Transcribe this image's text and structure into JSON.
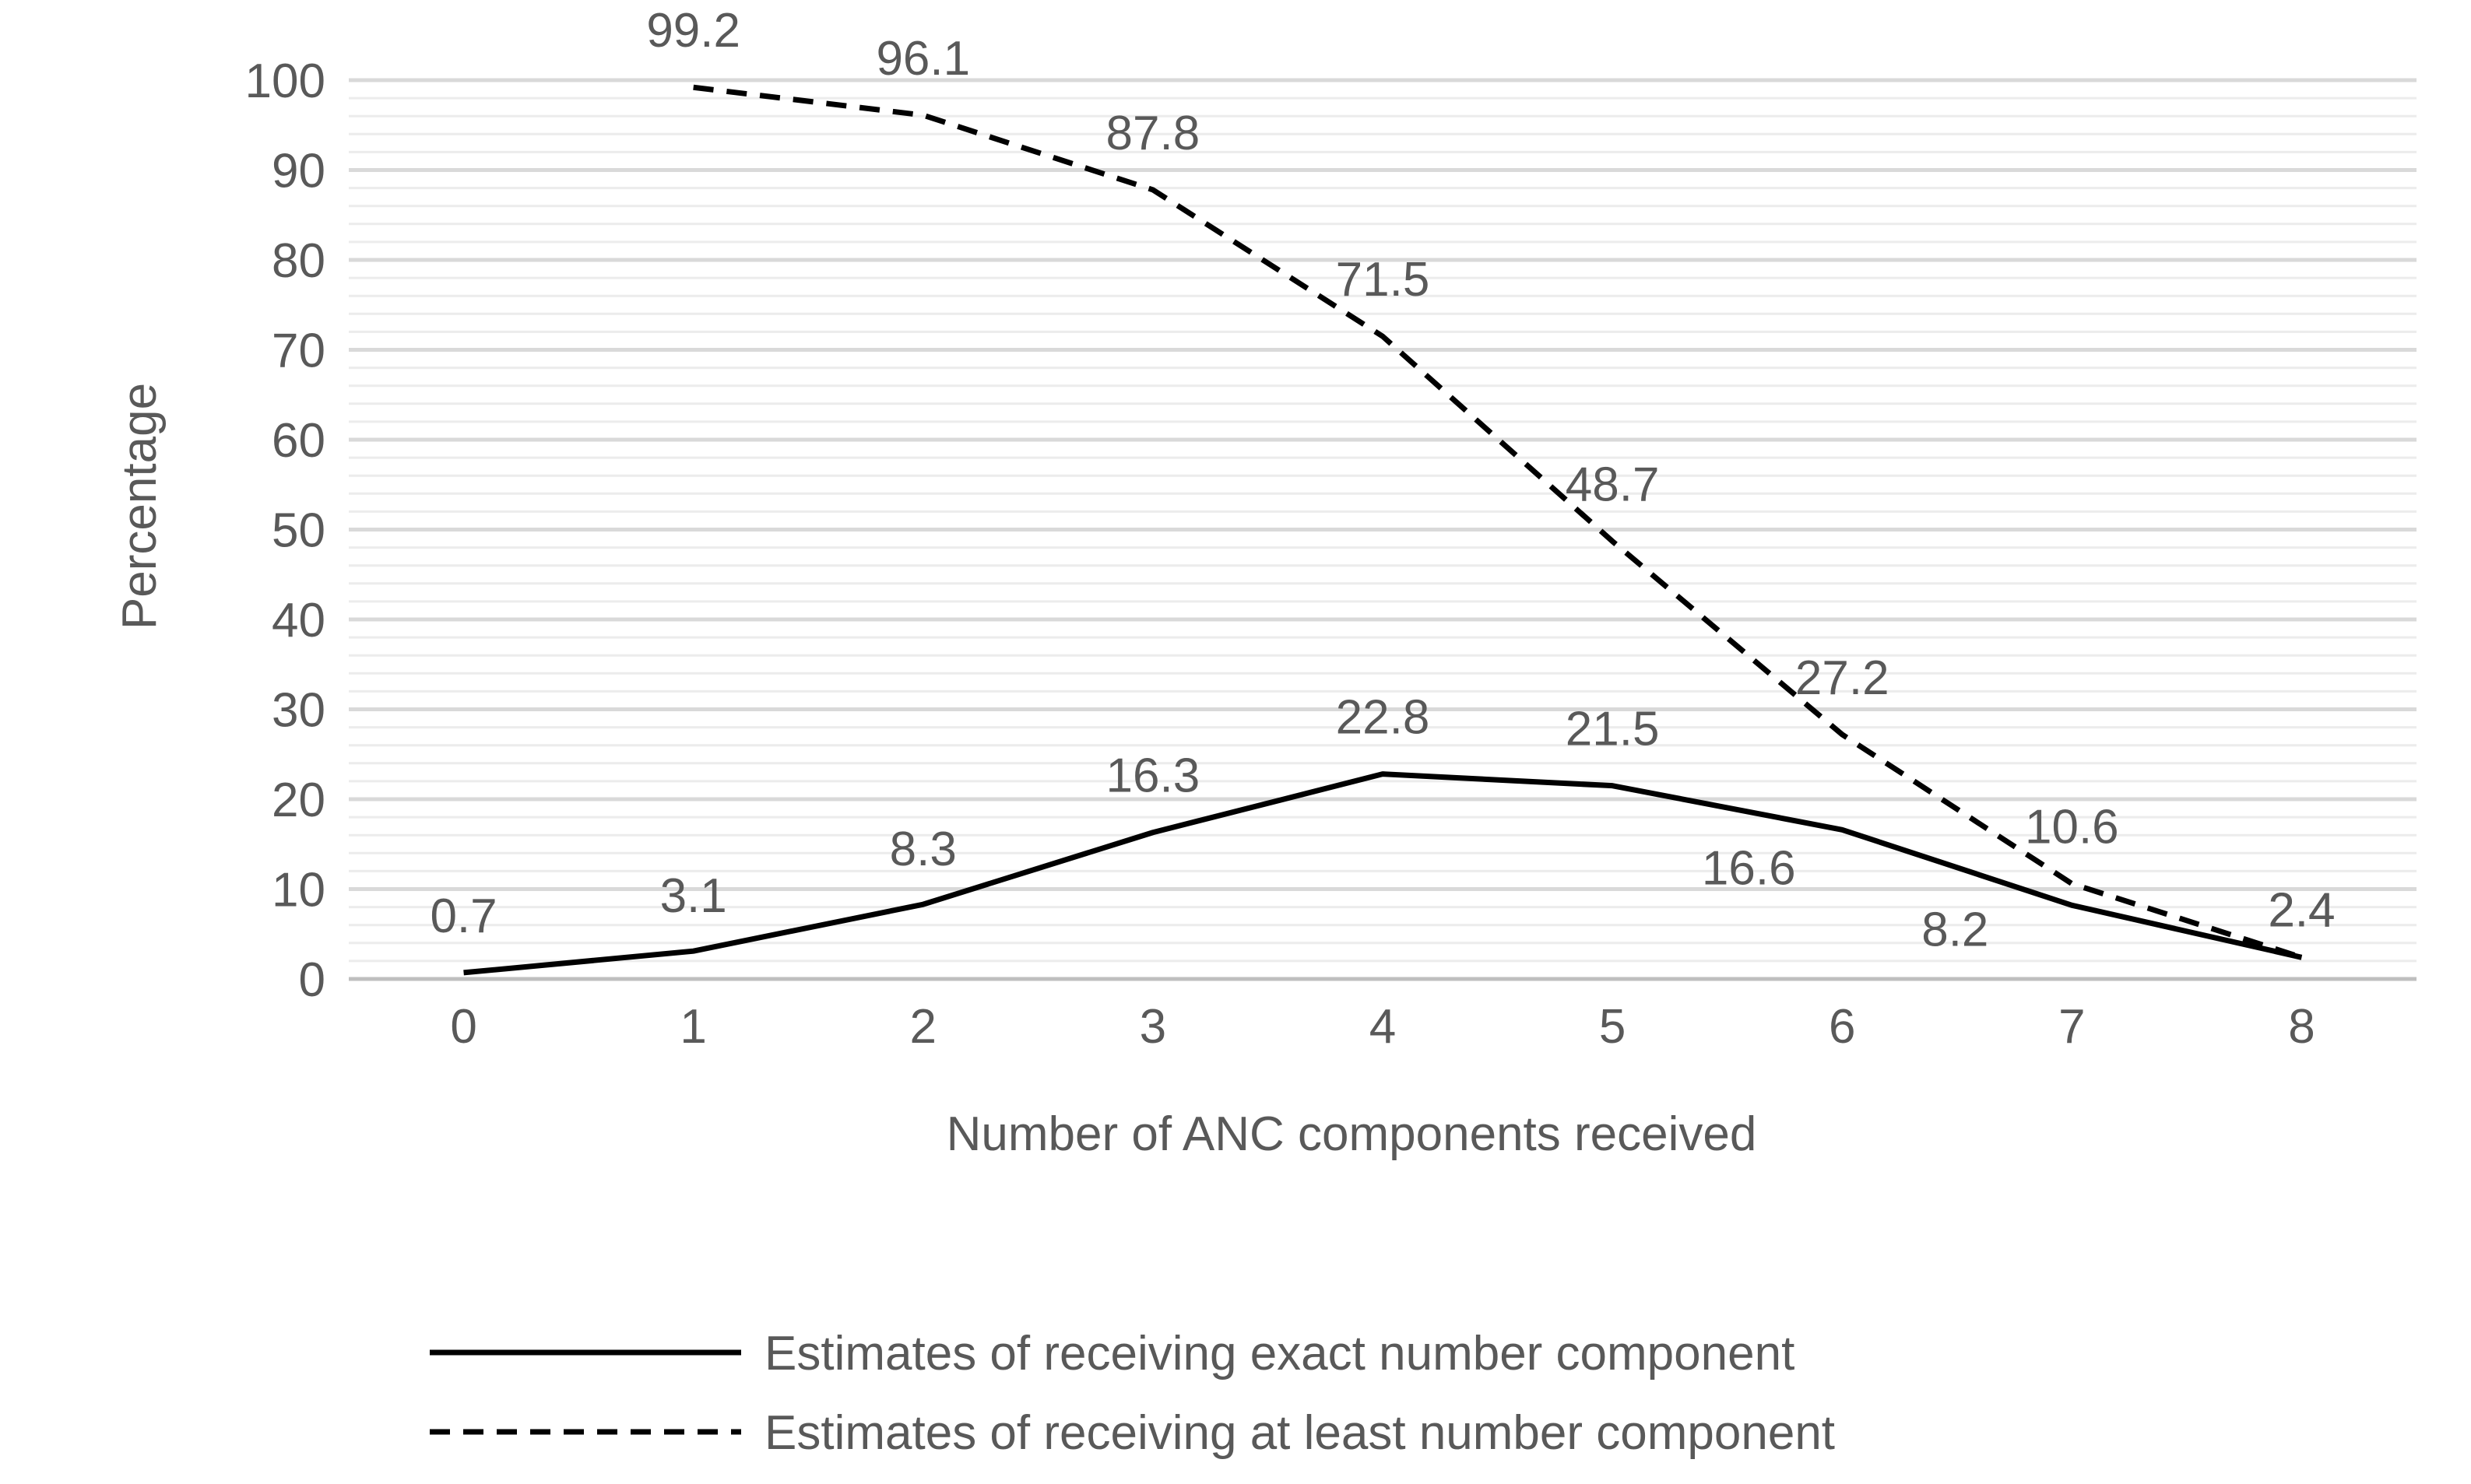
{
  "chart_data": {
    "type": "line",
    "x": [
      0,
      1,
      2,
      3,
      4,
      5,
      6,
      7,
      8
    ],
    "xlabel": "Number of ANC components received",
    "ylabel": "Percentage",
    "ylim": [
      0,
      100
    ],
    "yticks": [
      0,
      10,
      20,
      30,
      40,
      50,
      60,
      70,
      80,
      90,
      100
    ],
    "grid": true,
    "legend_position": "bottom",
    "series": [
      {
        "name": "Estimates of receiving exact number component",
        "style": "solid",
        "color": "#000000",
        "x": [
          0,
          1,
          2,
          3,
          4,
          5,
          6,
          7,
          8
        ],
        "values": [
          0.7,
          3.1,
          8.3,
          16.3,
          22.8,
          21.5,
          16.6,
          8.2,
          2.4
        ],
        "labels": [
          "0.7",
          "3.1",
          "8.3",
          "16.3",
          "22.8",
          "21.5",
          "16.6",
          "8.2",
          "2.4"
        ]
      },
      {
        "name": "Estimates of receiving at least number component",
        "style": "dashed",
        "color": "#000000",
        "x": [
          1,
          2,
          3,
          4,
          5,
          6,
          7,
          8
        ],
        "values": [
          99.2,
          96.1,
          87.8,
          71.5,
          48.7,
          27.2,
          10.6,
          2.4
        ],
        "labels": [
          "99.2",
          "96.1",
          "87.8",
          "71.5",
          "48.7",
          "27.2",
          "10.6",
          "2.4"
        ]
      }
    ]
  }
}
